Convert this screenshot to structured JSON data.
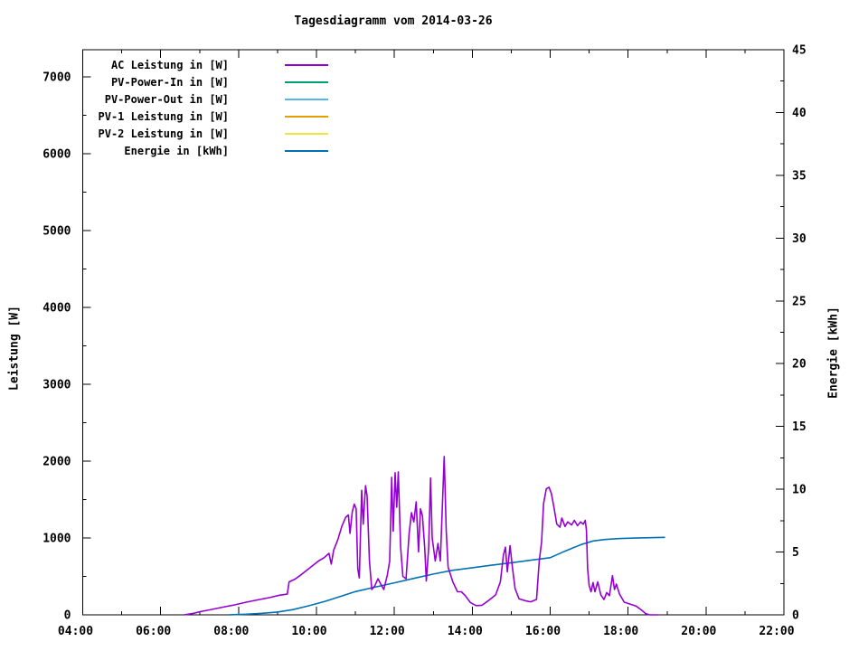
{
  "chart_data": {
    "type": "line",
    "title": "Tagesdiagramm vom 2014-03-26",
    "grid": false,
    "legend_position": "top-left-inside",
    "x_axis": {
      "range_hours": [
        4,
        22
      ],
      "major_tick_hours": [
        4,
        6,
        8,
        10,
        12,
        14,
        16,
        18,
        20,
        22
      ],
      "tick_labels": [
        "04:00",
        "06:00",
        "08:00",
        "10:00",
        "12:00",
        "14:00",
        "16:00",
        "18:00",
        "20:00",
        "22:00"
      ],
      "minor_tick_hours": [
        5,
        7,
        9,
        11,
        13,
        15,
        17,
        19,
        21
      ]
    },
    "y_left": {
      "label": "Leistung [W]",
      "range": [
        0,
        7353
      ],
      "major_ticks": [
        0,
        1000,
        2000,
        3000,
        4000,
        5000,
        6000,
        7000
      ],
      "tick_labels": [
        "0",
        "1000",
        "2000",
        "3000",
        "4000",
        "5000",
        "6000",
        "7000"
      ],
      "minor_ticks": [
        500,
        1500,
        2500,
        3500,
        4500,
        5500,
        6500
      ]
    },
    "y_right": {
      "label": "Energie [kWh]",
      "range": [
        0,
        45
      ],
      "major_ticks": [
        0,
        5,
        10,
        15,
        20,
        25,
        30,
        35,
        40,
        45
      ],
      "tick_labels": [
        "0",
        "5",
        "10",
        "15",
        "20",
        "25",
        "30",
        "35",
        "40",
        "45"
      ],
      "minor_ticks": [
        2.5,
        7.5,
        12.5,
        17.5,
        22.5,
        27.5,
        32.5,
        37.5,
        42.5
      ]
    },
    "series": [
      {
        "id": "ac-leistung",
        "name": "AC Leistung in [W]",
        "color": "#9400d3",
        "axis": "left",
        "z": 2,
        "points": [
          [
            6.6,
            0
          ],
          [
            6.85,
            20
          ],
          [
            7.0,
            40
          ],
          [
            7.3,
            70
          ],
          [
            7.6,
            100
          ],
          [
            7.9,
            130
          ],
          [
            8.2,
            165
          ],
          [
            8.5,
            195
          ],
          [
            8.8,
            225
          ],
          [
            9.05,
            255
          ],
          [
            9.25,
            270
          ],
          [
            9.3,
            430
          ],
          [
            9.45,
            465
          ],
          [
            9.6,
            520
          ],
          [
            9.75,
            580
          ],
          [
            9.9,
            640
          ],
          [
            10.05,
            700
          ],
          [
            10.2,
            745
          ],
          [
            10.32,
            800
          ],
          [
            10.38,
            660
          ],
          [
            10.44,
            840
          ],
          [
            10.55,
            980
          ],
          [
            10.65,
            1150
          ],
          [
            10.75,
            1270
          ],
          [
            10.82,
            1300
          ],
          [
            10.86,
            1060
          ],
          [
            10.92,
            1340
          ],
          [
            10.97,
            1440
          ],
          [
            11.02,
            1380
          ],
          [
            11.06,
            600
          ],
          [
            11.1,
            480
          ],
          [
            11.16,
            1620
          ],
          [
            11.2,
            1180
          ],
          [
            11.26,
            1680
          ],
          [
            11.3,
            1550
          ],
          [
            11.36,
            700
          ],
          [
            11.42,
            330
          ],
          [
            11.5,
            380
          ],
          [
            11.58,
            470
          ],
          [
            11.65,
            400
          ],
          [
            11.73,
            330
          ],
          [
            11.82,
            520
          ],
          [
            11.88,
            700
          ],
          [
            11.93,
            1790
          ],
          [
            11.97,
            1090
          ],
          [
            12.02,
            1850
          ],
          [
            12.06,
            1400
          ],
          [
            12.1,
            1860
          ],
          [
            12.16,
            880
          ],
          [
            12.22,
            500
          ],
          [
            12.3,
            470
          ],
          [
            12.38,
            1060
          ],
          [
            12.44,
            1330
          ],
          [
            12.5,
            1210
          ],
          [
            12.56,
            1470
          ],
          [
            12.62,
            820
          ],
          [
            12.67,
            1380
          ],
          [
            12.72,
            1290
          ],
          [
            12.78,
            860
          ],
          [
            12.82,
            440
          ],
          [
            12.88,
            870
          ],
          [
            12.93,
            1780
          ],
          [
            12.97,
            1000
          ],
          [
            13.05,
            700
          ],
          [
            13.12,
            930
          ],
          [
            13.18,
            700
          ],
          [
            13.28,
            2060
          ],
          [
            13.33,
            1100
          ],
          [
            13.38,
            620
          ],
          [
            13.5,
            430
          ],
          [
            13.62,
            300
          ],
          [
            13.72,
            300
          ],
          [
            13.82,
            250
          ],
          [
            13.95,
            160
          ],
          [
            14.1,
            120
          ],
          [
            14.25,
            125
          ],
          [
            14.4,
            180
          ],
          [
            14.6,
            260
          ],
          [
            14.72,
            430
          ],
          [
            14.8,
            780
          ],
          [
            14.85,
            880
          ],
          [
            14.9,
            560
          ],
          [
            14.97,
            900
          ],
          [
            15.03,
            620
          ],
          [
            15.1,
            340
          ],
          [
            15.2,
            210
          ],
          [
            15.35,
            185
          ],
          [
            15.5,
            170
          ],
          [
            15.65,
            200
          ],
          [
            15.72,
            700
          ],
          [
            15.78,
            950
          ],
          [
            15.83,
            1450
          ],
          [
            15.9,
            1640
          ],
          [
            15.97,
            1660
          ],
          [
            16.03,
            1580
          ],
          [
            16.1,
            1390
          ],
          [
            16.17,
            1180
          ],
          [
            16.25,
            1140
          ],
          [
            16.3,
            1260
          ],
          [
            16.38,
            1150
          ],
          [
            16.45,
            1210
          ],
          [
            16.55,
            1170
          ],
          [
            16.62,
            1230
          ],
          [
            16.7,
            1160
          ],
          [
            16.78,
            1210
          ],
          [
            16.85,
            1180
          ],
          [
            16.9,
            1230
          ],
          [
            16.93,
            1100
          ],
          [
            16.96,
            600
          ],
          [
            17.0,
            380
          ],
          [
            17.05,
            300
          ],
          [
            17.1,
            420
          ],
          [
            17.15,
            300
          ],
          [
            17.22,
            430
          ],
          [
            17.3,
            260
          ],
          [
            17.38,
            200
          ],
          [
            17.45,
            290
          ],
          [
            17.52,
            250
          ],
          [
            17.6,
            510
          ],
          [
            17.65,
            330
          ],
          [
            17.7,
            400
          ],
          [
            17.78,
            270
          ],
          [
            17.9,
            165
          ],
          [
            18.05,
            140
          ],
          [
            18.2,
            115
          ],
          [
            18.35,
            60
          ],
          [
            18.45,
            15
          ],
          [
            18.55,
            0
          ],
          [
            18.78,
            0
          ]
        ]
      },
      {
        "id": "pv-power-in",
        "name": "PV-Power-In in [W]",
        "color": "#009e73",
        "axis": "left",
        "z": 1,
        "points": []
      },
      {
        "id": "pv-power-out",
        "name": "PV-Power-Out in [W]",
        "color": "#56b4e9",
        "axis": "left",
        "z": 1,
        "points": []
      },
      {
        "id": "pv-1-leistung",
        "name": "PV-1 Leistung in [W]",
        "color": "#e69f00",
        "axis": "left",
        "z": 1,
        "points": []
      },
      {
        "id": "pv-2-leistung",
        "name": "PV-2 Leistung in [W]",
        "color": "#f0e442",
        "axis": "left",
        "z": 1,
        "points": []
      },
      {
        "id": "energie",
        "name": "Energie in [kWh]",
        "color": "#0072b2",
        "axis": "right",
        "z": 1,
        "points": [
          [
            7.75,
            0
          ],
          [
            8.2,
            0.05
          ],
          [
            8.6,
            0.12
          ],
          [
            9.0,
            0.22
          ],
          [
            9.4,
            0.42
          ],
          [
            9.8,
            0.72
          ],
          [
            10.2,
            1.05
          ],
          [
            10.6,
            1.45
          ],
          [
            11.0,
            1.85
          ],
          [
            11.5,
            2.2
          ],
          [
            12.0,
            2.55
          ],
          [
            12.5,
            2.9
          ],
          [
            13.0,
            3.25
          ],
          [
            13.5,
            3.55
          ],
          [
            14.0,
            3.75
          ],
          [
            14.5,
            3.95
          ],
          [
            15.0,
            4.15
          ],
          [
            15.5,
            4.35
          ],
          [
            16.0,
            4.55
          ],
          [
            16.4,
            5.1
          ],
          [
            16.8,
            5.6
          ],
          [
            17.1,
            5.88
          ],
          [
            17.4,
            6.0
          ],
          [
            17.8,
            6.08
          ],
          [
            18.3,
            6.13
          ],
          [
            18.95,
            6.17
          ]
        ]
      }
    ]
  }
}
